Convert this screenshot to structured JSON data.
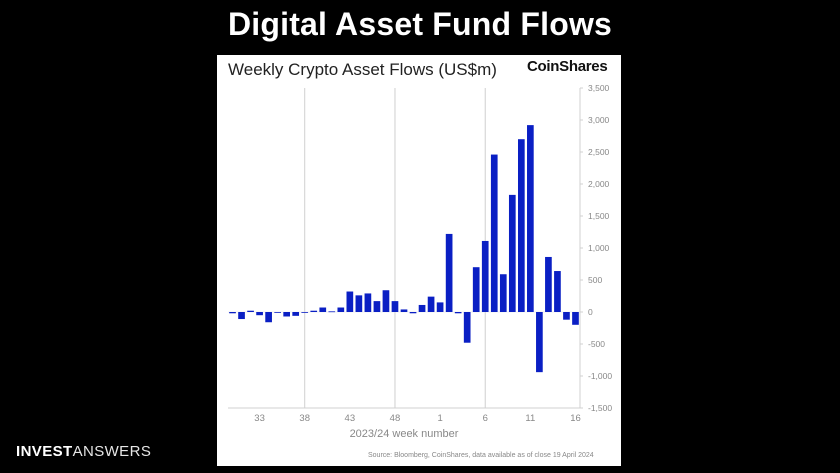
{
  "page": {
    "title": "Digital Asset Fund Flows",
    "footer_brand_bold": "INVEST",
    "footer_brand_light": "ANSWERS"
  },
  "chart_panel": {
    "title": "Weekly Crypto Asset Flows (US$m)",
    "logo_text": "CoinShares",
    "source": "Source: Bloomberg, CoinShares, data available as of close 19 April 2024"
  },
  "colors": {
    "bar": "#0a1fc4",
    "grid": "#d0d0d0",
    "axis_text": "#888888",
    "background": "#000000",
    "panel": "#ffffff"
  },
  "chart_data": {
    "type": "bar",
    "xlabel": "2023/24 week number",
    "ylabel": "",
    "ylim": [
      -1500,
      3500
    ],
    "yticks": [
      -1500,
      -1000,
      -500,
      0,
      500,
      1000,
      1500,
      2000,
      2500,
      3000,
      3500
    ],
    "ytick_labels": [
      "-1,500",
      "-1,000",
      "-500",
      "0",
      "500",
      "1,000",
      "1,500",
      "2,000",
      "2,500",
      "3,000",
      "3,500"
    ],
    "y_axis_position": "right",
    "grid": "vertical",
    "xtick_labels": [
      "33",
      "38",
      "43",
      "48",
      "1",
      "6",
      "11",
      "16"
    ],
    "xtick_indices": [
      3,
      8,
      13,
      18,
      23,
      28,
      33,
      38
    ],
    "vgrid_indices": [
      8,
      18,
      28
    ],
    "categories": [
      "30",
      "31",
      "32",
      "33",
      "34",
      "35",
      "36",
      "37",
      "38",
      "39",
      "40",
      "41",
      "42",
      "43",
      "44",
      "45",
      "46",
      "47",
      "48",
      "49",
      "50",
      "51",
      "52",
      "1",
      "2",
      "3",
      "4",
      "5",
      "6",
      "7",
      "8",
      "9",
      "10",
      "11",
      "12",
      "13",
      "14",
      "15",
      "16"
    ],
    "values": [
      -20,
      -110,
      20,
      -50,
      -160,
      0,
      -70,
      -60,
      0,
      20,
      70,
      10,
      70,
      320,
      260,
      290,
      170,
      340,
      170,
      40,
      -20,
      110,
      240,
      150,
      1220,
      -20,
      -480,
      700,
      1110,
      2460,
      590,
      1830,
      2700,
      2920,
      -940,
      860,
      640,
      -120,
      -200
    ]
  }
}
